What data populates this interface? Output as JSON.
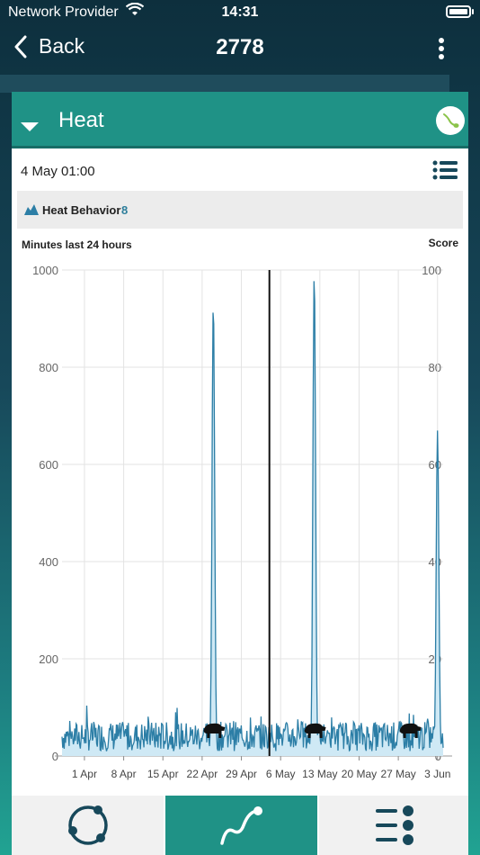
{
  "status_bar": {
    "carrier": "Network Provider",
    "time": "14:31"
  },
  "nav": {
    "back_label": "Back",
    "title": "2778"
  },
  "card": {
    "heading": "Heat",
    "date": "4 May 01:00",
    "filter": {
      "label": "Heat Behavior",
      "count": "8"
    }
  },
  "colors": {
    "accent": "#1f9286",
    "line": "#2c7ea6",
    "fill": "#cfe9f5",
    "status_icon": "#8bc34a"
  },
  "chart_data": {
    "type": "area",
    "ylabel": "Minutes last 24 hours",
    "y2label": "Score",
    "ylim": [
      0,
      1000
    ],
    "y2lim": [
      0,
      100
    ],
    "yticks": [
      0,
      200,
      400,
      600,
      800,
      1000
    ],
    "y2ticks": [
      0,
      20,
      40,
      60,
      80,
      100
    ],
    "xticks": [
      "1 Apr",
      "8 Apr",
      "15 Apr",
      "22 Apr",
      "29 Apr",
      "6 May",
      "13 May",
      "20 May",
      "27 May",
      "3 Jun"
    ],
    "x_start": "2018-03-28",
    "x_end": "2018-06-04",
    "cursor": "2018-05-04",
    "grid": true,
    "heat_peaks": [
      {
        "date": "2018-04-24",
        "value": 935
      },
      {
        "date": "2018-05-12",
        "value": 995
      },
      {
        "date": "2018-06-03",
        "value": 670
      }
    ],
    "heat_events": [
      "2018-04-24",
      "2018-05-12",
      "2018-05-29"
    ],
    "baseline_range": [
      10,
      120
    ]
  },
  "tabs": [
    {
      "name": "cycle-tab",
      "icon": "cycle-icon"
    },
    {
      "name": "graph-tab",
      "icon": "graph-icon"
    },
    {
      "name": "list-tab",
      "icon": "list-icon"
    }
  ]
}
